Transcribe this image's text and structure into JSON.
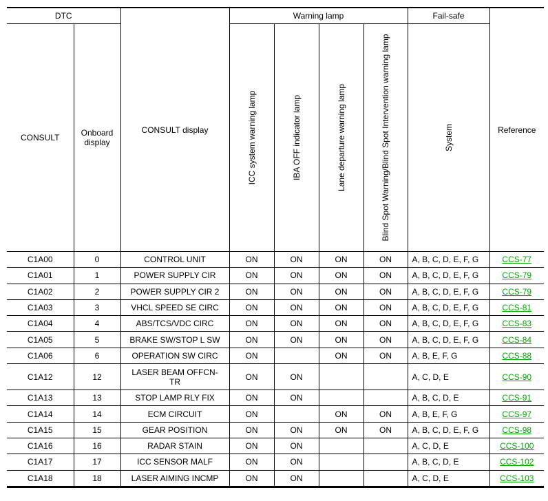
{
  "header": {
    "dtc": "DTC",
    "consult": "CONSULT",
    "onboard_display": "Onboard display",
    "consult_display": "CONSULT display",
    "warning_lamp": "Warning lamp",
    "lamps": [
      "ICC system warning lamp",
      "IBA OFF indicator lamp",
      "Lane departure warning lamp",
      "Blind Spot Warning/Blind Spot Intervention warning lamp"
    ],
    "fail_safe": "Fail-safe",
    "system": "System",
    "reference": "Reference"
  },
  "link_color": "#00a800",
  "rows": [
    {
      "consult": "C1A00",
      "onboard": "0",
      "display": "CONTROL UNIT",
      "icc": "ON",
      "iba": "ON",
      "lane": "ON",
      "bsw": "ON",
      "system": "A, B, C, D, E, F, G",
      "ref": "CCS-77"
    },
    {
      "consult": "C1A01",
      "onboard": "1",
      "display": "POWER SUPPLY CIR",
      "icc": "ON",
      "iba": "ON",
      "lane": "ON",
      "bsw": "ON",
      "system": "A, B, C, D, E, F, G",
      "ref": "CCS-79"
    },
    {
      "consult": "C1A02",
      "onboard": "2",
      "display": "POWER SUPPLY CIR 2",
      "icc": "ON",
      "iba": "ON",
      "lane": "ON",
      "bsw": "ON",
      "system": "A, B, C, D, E, F, G",
      "ref": "CCS-79"
    },
    {
      "consult": "C1A03",
      "onboard": "3",
      "display": "VHCL SPEED SE CIRC",
      "icc": "ON",
      "iba": "ON",
      "lane": "ON",
      "bsw": "ON",
      "system": "A, B, C, D, E, F, G",
      "ref": "CCS-81"
    },
    {
      "consult": "C1A04",
      "onboard": "4",
      "display": "ABS/TCS/VDC CIRC",
      "icc": "ON",
      "iba": "ON",
      "lane": "ON",
      "bsw": "ON",
      "system": "A, B, C, D, E, F, G",
      "ref": "CCS-83"
    },
    {
      "consult": "C1A05",
      "onboard": "5",
      "display": "BRAKE SW/STOP L SW",
      "icc": "ON",
      "iba": "ON",
      "lane": "ON",
      "bsw": "ON",
      "system": "A, B, C, D, E, F, G",
      "ref": "CCS-84"
    },
    {
      "consult": "C1A06",
      "onboard": "6",
      "display": "OPERATION SW CIRC",
      "icc": "ON",
      "iba": "",
      "lane": "ON",
      "bsw": "ON",
      "system": "A, B, E, F, G",
      "ref": "CCS-88"
    },
    {
      "consult": "C1A12",
      "onboard": "12",
      "display": "LASER BEAM OFFCN-TR",
      "icc": "ON",
      "iba": "ON",
      "lane": "",
      "bsw": "",
      "system": "A, C, D, E",
      "ref": "CCS-90"
    },
    {
      "consult": "C1A13",
      "onboard": "13",
      "display": "STOP LAMP RLY FIX",
      "icc": "ON",
      "iba": "ON",
      "lane": "",
      "bsw": "",
      "system": "A, B, C, D, E",
      "ref": "CCS-91"
    },
    {
      "consult": "C1A14",
      "onboard": "14",
      "display": "ECM CIRCUIT",
      "icc": "ON",
      "iba": "",
      "lane": "ON",
      "bsw": "ON",
      "system": "A, B, E, F, G",
      "ref": "CCS-97"
    },
    {
      "consult": "C1A15",
      "onboard": "15",
      "display": "GEAR POSITION",
      "icc": "ON",
      "iba": "ON",
      "lane": "ON",
      "bsw": "ON",
      "system": "A, B, C, D, E, F, G",
      "ref": "CCS-98"
    },
    {
      "consult": "C1A16",
      "onboard": "16",
      "display": "RADAR STAIN",
      "icc": "ON",
      "iba": "ON",
      "lane": "",
      "bsw": "",
      "system": "A, C, D, E",
      "ref": "CCS-100"
    },
    {
      "consult": "C1A17",
      "onboard": "17",
      "display": "ICC SENSOR MALF",
      "icc": "ON",
      "iba": "ON",
      "lane": "",
      "bsw": "",
      "system": "A, B, C, D, E",
      "ref": "CCS-102"
    },
    {
      "consult": "C1A18",
      "onboard": "18",
      "display": "LASER AIMING INCMP",
      "icc": "ON",
      "iba": "ON",
      "lane": "",
      "bsw": "",
      "system": "A, C, D, E",
      "ref": "CCS-103"
    }
  ]
}
